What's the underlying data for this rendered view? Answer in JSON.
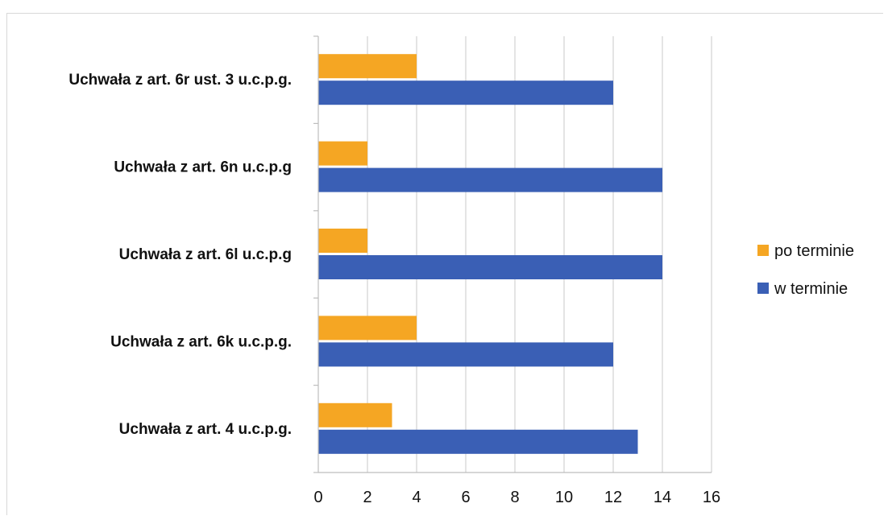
{
  "chart_data": {
    "type": "bar",
    "orientation": "horizontal",
    "categories": [
      "Uchwała z art. 4 u.c.p.g.",
      "Uchwała z art. 6k u.c.p.g.",
      "Uchwała z art. 6l u.c.p.g",
      "Uchwała z art. 6n u.c.p.g",
      "Uchwała z art. 6r ust. 3 u.c.p.g."
    ],
    "series": [
      {
        "name": "po terminie",
        "color": "#f5a623",
        "values": [
          3,
          4,
          2,
          2,
          4
        ]
      },
      {
        "name": "w terminie",
        "color": "#3a5fb5",
        "values": [
          13,
          12,
          14,
          14,
          12
        ]
      }
    ],
    "xlim": [
      0,
      16
    ],
    "xticks": [
      "0",
      "2",
      "4",
      "6",
      "8",
      "10",
      "12",
      "14",
      "16"
    ],
    "grid": true,
    "legend_position": "right"
  }
}
